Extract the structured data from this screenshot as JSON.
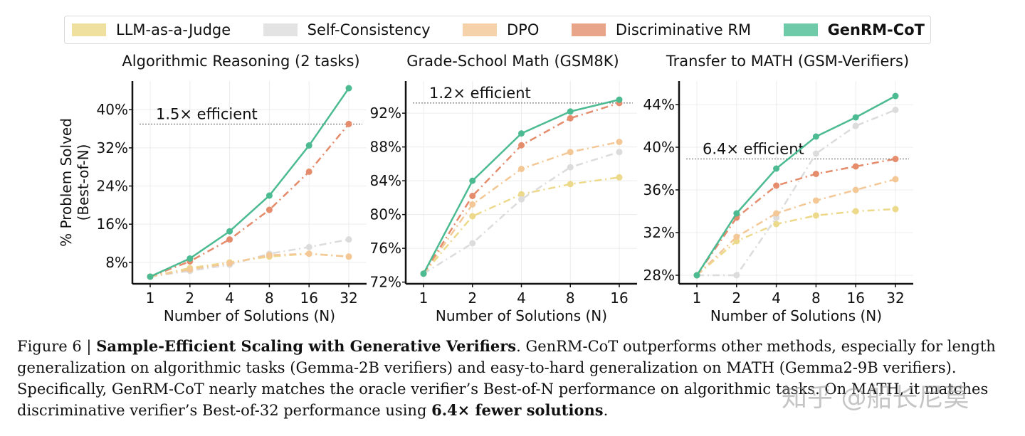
{
  "legend": {
    "items": [
      {
        "name": "LLM-as-a-Judge",
        "color": "#f0e0a0",
        "bold": false
      },
      {
        "name": "Self-Consistency",
        "color": "#e3e3e3",
        "bold": false
      },
      {
        "name": "DPO",
        "color": "#f6d2aa",
        "bold": false
      },
      {
        "name": "Discriminative RM",
        "color": "#e9a58a",
        "bold": false
      },
      {
        "name": "GenRM-CoT",
        "color": "#6fcaaa",
        "bold": true
      }
    ]
  },
  "ylabel_lines": [
    "% Problem Solved",
    "(Best-of-N)"
  ],
  "series_style": {
    "LLM-as-a-Judge": {
      "color": "#ecd98a",
      "dash": "10 5 2 5"
    },
    "Self-Consistency": {
      "color": "#dcdcdc",
      "dash": "10 5 2 5"
    },
    "DPO": {
      "color": "#f3c896",
      "dash": "10 5 2 5"
    },
    "Discriminative RM": {
      "color": "#e48c6c",
      "dash": "10 5 2 5"
    },
    "GenRM-CoT": {
      "color": "#4cbb92",
      "dash": ""
    }
  },
  "chart_data": [
    {
      "type": "line",
      "title": "Algorithmic Reasoning (2 tasks)",
      "xlabel": "Number of Solutions (N)",
      "ylabel": "% Problem Solved (Best-of-N)",
      "x": [
        "1",
        "2",
        "4",
        "8",
        "16",
        "32"
      ],
      "ylim": [
        3.5,
        46
      ],
      "yticks": [
        8,
        16,
        24,
        32,
        40
      ],
      "ytick_labels": [
        "8%",
        "16%",
        "24%",
        "32%",
        "40%"
      ],
      "grid": true,
      "series": [
        {
          "name": "LLM-as-a-Judge",
          "values": [
            5.0,
            6.8,
            8.0,
            9.2,
            9.8,
            9.2
          ]
        },
        {
          "name": "Self-Consistency",
          "values": [
            5.0,
            6.2,
            7.5,
            9.8,
            11.2,
            12.8
          ]
        },
        {
          "name": "DPO",
          "values": [
            5.0,
            6.5,
            7.8,
            9.5,
            9.8,
            9.2
          ]
        },
        {
          "name": "Discriminative RM",
          "values": [
            5.0,
            8.2,
            12.8,
            19.0,
            27.0,
            37.0
          ]
        },
        {
          "name": "GenRM-CoT",
          "values": [
            5.0,
            8.8,
            14.5,
            22.0,
            32.5,
            44.5
          ]
        }
      ],
      "annotation": {
        "text": "1.5× efficient",
        "y": 37.0
      }
    },
    {
      "type": "line",
      "title": "Grade-School Math (GSM8K)",
      "xlabel": "Number of Solutions (N)",
      "ylabel": "",
      "x": [
        "1",
        "2",
        "4",
        "8",
        "16"
      ],
      "ylim": [
        71.8,
        95.8
      ],
      "yticks": [
        72,
        76,
        80,
        84,
        88,
        92
      ],
      "ytick_labels": [
        "72%",
        "76%",
        "80%",
        "84%",
        "88%",
        "92%"
      ],
      "grid": true,
      "series": [
        {
          "name": "LLM-as-a-Judge",
          "values": [
            73.0,
            79.8,
            82.4,
            83.6,
            84.4
          ]
        },
        {
          "name": "Self-Consistency",
          "values": [
            73.0,
            76.6,
            81.8,
            85.6,
            87.4
          ]
        },
        {
          "name": "DPO",
          "values": [
            73.0,
            81.2,
            85.4,
            87.4,
            88.6
          ]
        },
        {
          "name": "Discriminative RM",
          "values": [
            73.0,
            82.2,
            88.2,
            91.4,
            93.2
          ]
        },
        {
          "name": "GenRM-CoT",
          "values": [
            73.0,
            84.0,
            89.6,
            92.2,
            93.6
          ]
        }
      ],
      "annotation": {
        "text": "1.2× efficient",
        "y": 93.2
      }
    },
    {
      "type": "line",
      "title": "Transfer to MATH (GSM-Verifiers)",
      "xlabel": "Number of Solutions (N)",
      "ylabel": "",
      "x": [
        "1",
        "2",
        "4",
        "8",
        "16",
        "32"
      ],
      "ylim": [
        27.2,
        46.2
      ],
      "yticks": [
        28,
        32,
        36,
        40,
        44
      ],
      "ytick_labels": [
        "28%",
        "32%",
        "36%",
        "40%",
        "44%"
      ],
      "grid": true,
      "series": [
        {
          "name": "LLM-as-a-Judge",
          "values": [
            28.0,
            31.2,
            32.8,
            33.6,
            34.0,
            34.2
          ]
        },
        {
          "name": "Self-Consistency",
          "values": [
            28.0,
            28.0,
            33.4,
            39.4,
            42.0,
            43.5
          ]
        },
        {
          "name": "DPO",
          "values": [
            28.0,
            31.6,
            33.8,
            35.0,
            36.0,
            37.0
          ]
        },
        {
          "name": "Discriminative RM",
          "values": [
            28.0,
            33.4,
            36.4,
            37.5,
            38.2,
            38.9
          ]
        },
        {
          "name": "GenRM-CoT",
          "values": [
            28.0,
            33.8,
            38.0,
            41.0,
            42.8,
            44.8
          ]
        }
      ],
      "annotation": {
        "text": "6.4× efficient",
        "y": 38.9
      }
    }
  ],
  "caption": {
    "prefix": "Figure 6 | ",
    "bold_title": "Sample-Efficient Scaling with Generative Verifiers",
    "text1": ". GenRM-CoT outperforms other methods, especially for length generalization on algorithmic tasks (Gemma-2B verifiers) and easy-to-hard generalization on MATH (Gemma2-9B verifiers). Specifically, GenRM-CoT nearly matches the oracle verifier’s Best-of-N performance on algorithmic tasks. On MATH, it matches discriminative verifier’s Best-of-32 performance using ",
    "bold_end": "6.4× fewer solutions",
    "text2": "."
  },
  "watermark": "知乎 @船长尼莫"
}
